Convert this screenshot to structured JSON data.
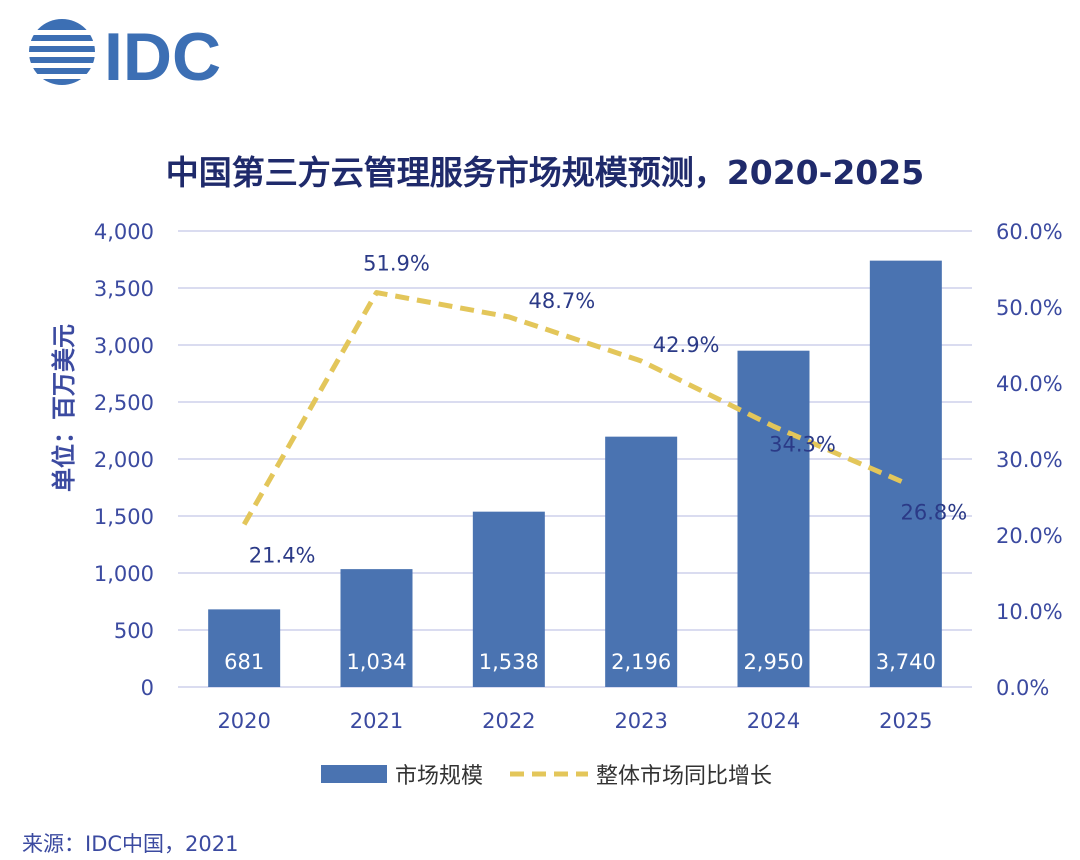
{
  "logo": {
    "text": "IDC"
  },
  "source": "来源：IDC中国，2021",
  "colors": {
    "bar": "#4a73b1",
    "line": "#e3c65a",
    "axis_text": "#3b4aa0",
    "title": "#1f2a6b",
    "grid": "#cdd0ec"
  },
  "chart_data": {
    "type": "bar",
    "title": "中国第三方云管理服务市场规模预测，2020-2025",
    "ylabel": "单位：百万美元",
    "categories": [
      "2020",
      "2021",
      "2022",
      "2023",
      "2024",
      "2025"
    ],
    "ylim": [
      0,
      4000
    ],
    "y_ticks": [
      "0",
      "500",
      "1,000",
      "1,500",
      "2,000",
      "2,500",
      "3,000",
      "3,500",
      "4,000"
    ],
    "y2lim": [
      0,
      60
    ],
    "y2_ticks": [
      "0.0%",
      "10.0%",
      "20.0%",
      "30.0%",
      "40.0%",
      "50.0%",
      "60.0%"
    ],
    "series": [
      {
        "name": "市场规模",
        "type": "bar",
        "axis": "left",
        "values": [
          681,
          1034,
          1538,
          2196,
          2950,
          3740
        ],
        "labels": [
          "681",
          "1,034",
          "1,538",
          "2,196",
          "2,950",
          "3,740"
        ]
      },
      {
        "name": "整体市场同比增长",
        "type": "line",
        "style": "dashed",
        "axis": "right",
        "values": [
          21.4,
          51.9,
          48.7,
          42.9,
          34.3,
          26.8
        ],
        "labels": [
          "21.4%",
          "51.9%",
          "48.7%",
          "42.9%",
          "34.3%",
          "26.8%"
        ]
      }
    ],
    "legend": "bottom",
    "grid": true
  }
}
